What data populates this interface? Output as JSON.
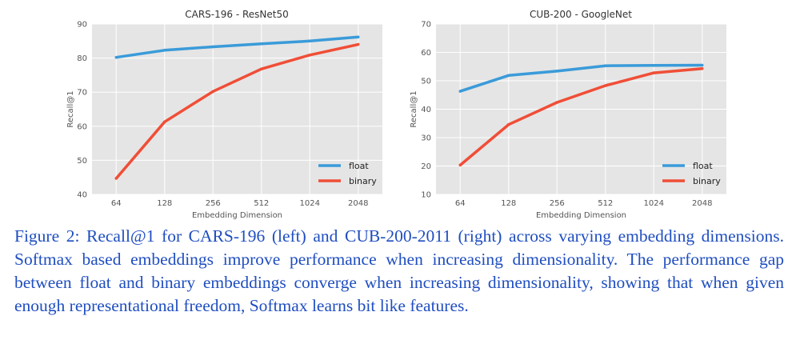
{
  "chart_data": [
    {
      "type": "line",
      "title": "CARS-196 - ResNet50",
      "xlabel": "Embedding Dimension",
      "ylabel": "Recall@1",
      "categories": [
        "64",
        "128",
        "256",
        "512",
        "1024",
        "2048"
      ],
      "yticks": [
        "40",
        "50",
        "60",
        "70",
        "80",
        "90"
      ],
      "ylim": [
        40,
        90
      ],
      "grid": true,
      "legend_position": "bottom-right",
      "series": [
        {
          "name": "float",
          "color": "#3a9bd9",
          "values": [
            80.2,
            82.3,
            83.3,
            84.2,
            85.0,
            86.2
          ]
        },
        {
          "name": "binary",
          "color": "#f04e37",
          "values": [
            44.7,
            61.3,
            70.2,
            76.8,
            80.9,
            84.0
          ]
        }
      ]
    },
    {
      "type": "line",
      "title": "CUB-200 - GoogleNet",
      "xlabel": "Embedding Dimension",
      "ylabel": "Recall@1",
      "categories": [
        "64",
        "128",
        "256",
        "512",
        "1024",
        "2048"
      ],
      "yticks": [
        "10",
        "20",
        "30",
        "40",
        "50",
        "60",
        "70"
      ],
      "ylim": [
        10,
        70
      ],
      "grid": true,
      "legend_position": "bottom-right",
      "series": [
        {
          "name": "float",
          "color": "#3a9bd9",
          "values": [
            46.3,
            51.9,
            53.4,
            55.3,
            55.4,
            55.5
          ]
        },
        {
          "name": "binary",
          "color": "#f04e37",
          "values": [
            20.3,
            34.6,
            42.4,
            48.3,
            52.8,
            54.3
          ]
        }
      ]
    }
  ],
  "caption": "Figure 2: Recall@1 for CARS-196 (left) and CUB-200-2011 (right) across varying embedding dimensions. Softmax based embeddings improve performance when increasing dimensionality. The performance gap between float and binary embeddings converge when increasing dimensionality, showing that when given enough representational freedom, Softmax learns bit like features."
}
